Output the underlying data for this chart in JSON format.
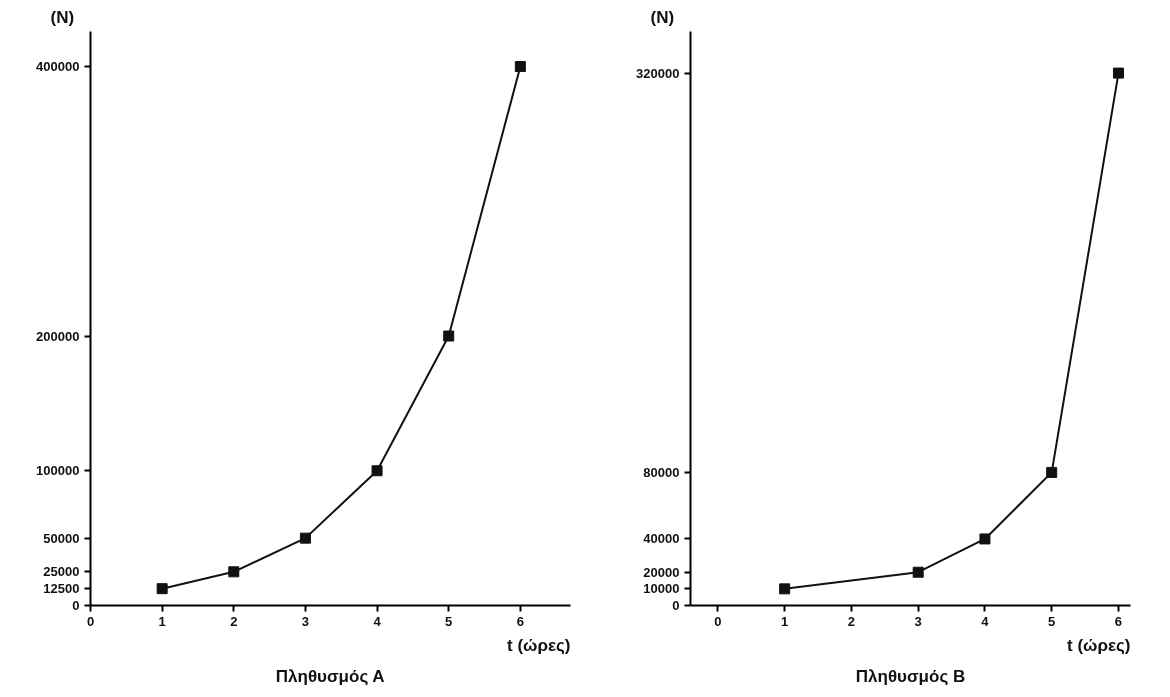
{
  "chart_data": [
    {
      "type": "line",
      "title": "Πληθυσμός Α",
      "xlabel": "t (ώρες)",
      "ylabel": "(N)",
      "x": [
        1,
        2,
        3,
        4,
        5,
        6
      ],
      "series": [
        {
          "color": "#111111",
          "values": [
            12500,
            25000,
            50000,
            100000,
            200000,
            400000
          ]
        }
      ],
      "xlim": [
        0,
        6.7
      ],
      "xticks": [
        0,
        1,
        2,
        3,
        4,
        5,
        6
      ],
      "ylim": [
        0,
        426000
      ],
      "yticks": [
        0,
        12500,
        25000,
        50000,
        100000,
        200000,
        400000
      ],
      "grid": false,
      "marker": "square",
      "line_style": "solid"
    },
    {
      "type": "line",
      "title": "Πληθυσμός Β",
      "xlabel": "t (ώρες)",
      "ylabel": "(N)",
      "x": [
        1,
        3,
        4,
        5,
        6
      ],
      "series": [
        {
          "color": "#111111",
          "values": [
            10000,
            20000,
            40000,
            80000,
            320000
          ]
        }
      ],
      "xlim": [
        -0.41,
        6.18
      ],
      "xticks": [
        0,
        1,
        2,
        3,
        4,
        5,
        6
      ],
      "ylim": [
        0,
        345000
      ],
      "yticks": [
        0,
        10000,
        20000,
        40000,
        80000,
        320000
      ],
      "grid": false,
      "marker": "square",
      "line_style": "solid"
    }
  ]
}
